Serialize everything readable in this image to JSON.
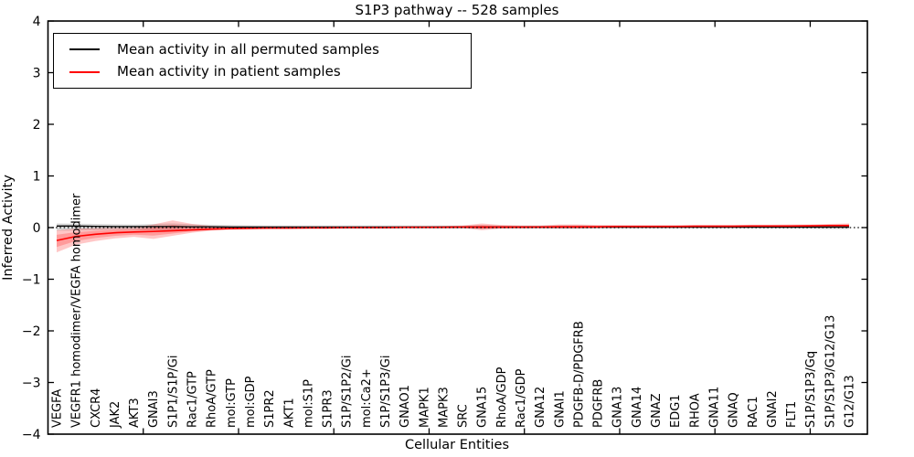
{
  "title": "S1P3 pathway -- 528 samples",
  "axes": {
    "xlabel": "Cellular Entities",
    "ylabel": "Inferred Activity",
    "ytick_labels": [
      "4",
      "3",
      "2",
      "1",
      "0",
      "−1",
      "−2",
      "−3",
      "−4"
    ],
    "ytick_values": [
      4,
      3,
      2,
      1,
      0,
      -1,
      -2,
      -3,
      -4
    ]
  },
  "legend": {
    "items": [
      {
        "label": "Mean activity in all permuted samples",
        "color": "#000000"
      },
      {
        "label": "Mean activity in patient samples",
        "color": "#ff0000"
      }
    ]
  },
  "chart_data": {
    "type": "line",
    "title": "S1P3 pathway -- 528 samples",
    "xlabel": "Cellular Entities",
    "ylabel": "Inferred Activity",
    "ylim": [
      -4,
      4
    ],
    "xtick_step": 5,
    "grid": false,
    "zero_line_style": "dotted",
    "legend_position": "upper left",
    "categories": [
      "VEGFA",
      "VEGFR1 homodimer/VEGFA homodimer",
      "CXCR4",
      "JAK2",
      "AKT3",
      "GNAI3",
      "S1P1/S1P/Gi",
      "Rac1/GTP",
      "RhoA/GTP",
      "mol:GTP",
      "mol:GDP",
      "S1PR2",
      "AKT1",
      "mol:S1P",
      "S1PR3",
      "S1P/S1P2/Gi",
      "mol:Ca2+",
      "S1P/S1P3/Gi",
      "GNAO1",
      "MAPK1",
      "MAPK3",
      "SRC",
      "GNA15",
      "RhoA/GDP",
      "Rac1/GDP",
      "GNA12",
      "GNAI1",
      "PDGFB-D/PDGFRB",
      "PDGFRB",
      "GNA13",
      "GNA14",
      "GNAZ",
      "EDG1",
      "RHOA",
      "GNA11",
      "GNAQ",
      "RAC1",
      "GNAI2",
      "FLT1",
      "S1P/S1P3/Gq",
      "S1P/S1P3/G12/G13",
      "G12/G13"
    ],
    "series": [
      {
        "name": "Mean activity in all permuted samples",
        "color": "#000000",
        "band_color": "rgba(0,0,0,0.15)",
        "mean": [
          0.03,
          0.03,
          0.025,
          0.02,
          0.02,
          0.02,
          0.02,
          0.015,
          0.015,
          0.01,
          0.01,
          0.01,
          0.01,
          0.01,
          0.01,
          0.01,
          0.01,
          0.01,
          0.01,
          0.01,
          0.01,
          0.01,
          0.01,
          0.01,
          0.01,
          0.01,
          0.01,
          0.01,
          0.01,
          0.01,
          0.01,
          0.01,
          0.01,
          0.01,
          0.01,
          0.01,
          0.01,
          0.01,
          0.01,
          0.01,
          0.01,
          0.01
        ],
        "upper": [
          0.08,
          0.075,
          0.07,
          0.065,
          0.06,
          0.07,
          0.08,
          0.065,
          0.055,
          0.05,
          0.045,
          0.04,
          0.04,
          0.04,
          0.04,
          0.04,
          0.04,
          0.04,
          0.04,
          0.04,
          0.04,
          0.04,
          0.045,
          0.04,
          0.04,
          0.04,
          0.045,
          0.045,
          0.04,
          0.04,
          0.04,
          0.04,
          0.04,
          0.04,
          0.04,
          0.04,
          0.04,
          0.04,
          0.045,
          0.045,
          0.05,
          0.05
        ],
        "lower": [
          -0.06,
          -0.055,
          -0.05,
          -0.045,
          -0.045,
          -0.05,
          -0.055,
          -0.045,
          -0.04,
          -0.035,
          -0.03,
          -0.025,
          -0.025,
          -0.025,
          -0.025,
          -0.025,
          -0.025,
          -0.025,
          -0.02,
          -0.02,
          -0.02,
          -0.02,
          -0.025,
          -0.02,
          -0.02,
          -0.02,
          -0.025,
          -0.025,
          -0.02,
          -0.02,
          -0.02,
          -0.02,
          -0.02,
          -0.02,
          -0.02,
          -0.02,
          -0.02,
          -0.02,
          -0.025,
          -0.025,
          -0.03,
          -0.03
        ]
      },
      {
        "name": "Mean activity in patient samples",
        "color": "#ff0000",
        "band_color": "rgba(255,0,0,0.22)",
        "mean": [
          -0.25,
          -0.17,
          -0.13,
          -0.1,
          -0.085,
          -0.075,
          -0.06,
          -0.045,
          -0.03,
          -0.02,
          -0.015,
          -0.01,
          -0.01,
          -0.005,
          -0.005,
          0,
          0,
          0,
          0.005,
          0.005,
          0.005,
          0.01,
          0.01,
          0.01,
          0.01,
          0.01,
          0.015,
          0.015,
          0.015,
          0.02,
          0.02,
          0.02,
          0.02,
          0.025,
          0.025,
          0.025,
          0.03,
          0.03,
          0.03,
          0.035,
          0.04,
          0.04
        ],
        "upper": [
          -0.05,
          -0.02,
          -0.01,
          -0.005,
          0,
          0.06,
          0.14,
          0.07,
          0.03,
          0.02,
          0.02,
          0.02,
          0.02,
          0.02,
          0.02,
          0.02,
          0.02,
          0.02,
          0.025,
          0.025,
          0.03,
          0.04,
          0.08,
          0.05,
          0.04,
          0.04,
          0.06,
          0.06,
          0.05,
          0.05,
          0.05,
          0.05,
          0.05,
          0.05,
          0.05,
          0.05,
          0.055,
          0.055,
          0.06,
          0.06,
          0.07,
          0.08
        ],
        "lower": [
          -0.48,
          -0.33,
          -0.26,
          -0.21,
          -0.18,
          -0.22,
          -0.16,
          -0.1,
          -0.06,
          -0.04,
          -0.03,
          -0.025,
          -0.02,
          -0.02,
          -0.02,
          -0.015,
          -0.015,
          -0.015,
          -0.01,
          -0.01,
          -0.01,
          -0.01,
          -0.05,
          -0.02,
          -0.015,
          -0.01,
          -0.02,
          -0.02,
          -0.01,
          -0.005,
          -0.005,
          -0.005,
          -0.005,
          0,
          0,
          0,
          0,
          0.005,
          0.005,
          0.01,
          0.01,
          0
        ]
      }
    ]
  }
}
